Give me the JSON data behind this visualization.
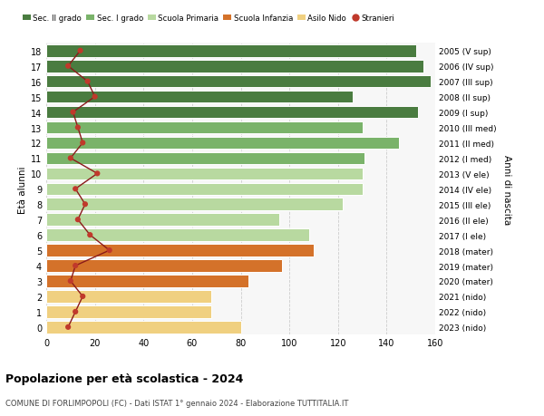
{
  "ages": [
    18,
    17,
    16,
    15,
    14,
    13,
    12,
    11,
    10,
    9,
    8,
    7,
    6,
    5,
    4,
    3,
    2,
    1,
    0
  ],
  "bar_values": [
    152,
    155,
    158,
    126,
    153,
    130,
    145,
    131,
    130,
    130,
    122,
    96,
    108,
    110,
    97,
    83,
    68,
    68,
    80
  ],
  "anni_nascita": [
    "2005 (V sup)",
    "2006 (IV sup)",
    "2007 (III sup)",
    "2008 (II sup)",
    "2009 (I sup)",
    "2010 (III med)",
    "2011 (II med)",
    "2012 (I med)",
    "2013 (V ele)",
    "2014 (IV ele)",
    "2015 (III ele)",
    "2016 (II ele)",
    "2017 (I ele)",
    "2018 (mater)",
    "2019 (mater)",
    "2020 (mater)",
    "2021 (nido)",
    "2022 (nido)",
    "2023 (nido)"
  ],
  "stranieri": [
    14,
    9,
    17,
    20,
    11,
    13,
    15,
    10,
    21,
    12,
    16,
    13,
    18,
    26,
    12,
    10,
    15,
    12,
    9
  ],
  "bar_colors": [
    "#4a7c40",
    "#4a7c40",
    "#4a7c40",
    "#4a7c40",
    "#4a7c40",
    "#7ab36a",
    "#7ab36a",
    "#7ab36a",
    "#b8d9a0",
    "#b8d9a0",
    "#b8d9a0",
    "#b8d9a0",
    "#b8d9a0",
    "#d4722a",
    "#d4722a",
    "#d4722a",
    "#f0d080",
    "#f0d080",
    "#f0d080"
  ],
  "legend_labels": [
    "Sec. II grado",
    "Sec. I grado",
    "Scuola Primaria",
    "Scuola Infanzia",
    "Asilo Nido",
    "Stranieri"
  ],
  "legend_colors": [
    "#4a7c40",
    "#7ab36a",
    "#b8d9a0",
    "#d4722a",
    "#f0d080",
    "#c0392b"
  ],
  "title": "Popolazione per età scolastica - 2024",
  "subtitle": "COMUNE DI FORLIMPOPOLI (FC) - Dati ISTAT 1° gennaio 2024 - Elaborazione TUTTITALIA.IT",
  "ylabel_left": "Età alunni",
  "ylabel_right": "Anni di nascita",
  "xlim": [
    0,
    160
  ],
  "xticks": [
    0,
    20,
    40,
    60,
    80,
    100,
    120,
    140,
    160
  ],
  "line_color": "#8b1a1a",
  "dot_color": "#c0392b",
  "bg_color": "#ffffff",
  "plot_bg_color": "#f7f7f7",
  "grid_color": "#cccccc"
}
